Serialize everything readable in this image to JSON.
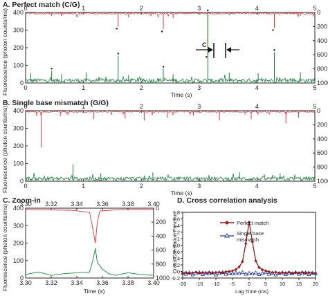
{
  "chart_data": [
    {
      "id": "A",
      "type": "line",
      "title": "A. Perfect match (C/G)",
      "xlabel": "Time (s)",
      "ylabel": "Fluorescence (photon counts/ms)",
      "xlim": [
        0,
        5
      ],
      "ylim": [
        0,
        400
      ],
      "y2lim": [
        1000,
        0
      ],
      "xticks": [
        "0",
        "1",
        "2",
        "3",
        "4",
        "5"
      ],
      "yticks": [
        "0",
        "100",
        "200",
        "300",
        "400"
      ],
      "y2ticks": [
        "0",
        "200",
        "400",
        "600",
        "800",
        "1000"
      ],
      "annotation": "C",
      "series": [
        {
          "color": "#d9333f",
          "axis": "right",
          "points": [
            [
              0.09,
              980
            ],
            [
              0.45,
              950
            ],
            [
              0.62,
              960
            ],
            [
              1.05,
              970
            ],
            [
              1.6,
              800
            ],
            [
              1.78,
              930
            ],
            [
              2.38,
              760
            ],
            [
              2.55,
              920
            ],
            [
              3.15,
              400
            ],
            [
              3.52,
              960
            ],
            [
              4.02,
              970
            ],
            [
              4.3,
              780
            ],
            [
              4.75,
              950
            ]
          ]
        },
        {
          "color": "#1a7d3b",
          "axis": "left",
          "points": [
            [
              0.09,
              55
            ],
            [
              0.45,
              70
            ],
            [
              0.62,
              50
            ],
            [
              1.05,
              60
            ],
            [
              1.6,
              155
            ],
            [
              1.78,
              45
            ],
            [
              2.38,
              80
            ],
            [
              2.55,
              50
            ],
            [
              3.15,
              400
            ],
            [
              3.52,
              60
            ],
            [
              4.02,
              55
            ],
            [
              4.3,
              175
            ],
            [
              4.75,
              60
            ]
          ]
        }
      ]
    },
    {
      "id": "B",
      "type": "line",
      "title": "B. Single base mismatch (G/G)",
      "xlabel": "Time (s)",
      "ylabel": "Fluorescence (photon counts/ms)",
      "xlim": [
        0,
        5
      ],
      "ylim": [
        0,
        400
      ],
      "y2lim": [
        1000,
        0
      ],
      "xticks": [
        "0",
        "1",
        "2",
        "3",
        "4",
        "5"
      ],
      "yticks": [
        "0",
        "100",
        "200",
        "300",
        "400"
      ],
      "y2ticks": [
        "0",
        "200",
        "400",
        "600",
        "800",
        "1000"
      ],
      "series": [
        {
          "color": "#d9333f",
          "axis": "right",
          "points": [
            [
              0.27,
              480
            ],
            [
              0.6,
              920
            ],
            [
              1.18,
              880
            ],
            [
              1.72,
              890
            ],
            [
              2.05,
              860
            ],
            [
              2.45,
              900
            ],
            [
              2.9,
              930
            ],
            [
              3.35,
              860
            ],
            [
              3.9,
              880
            ],
            [
              4.5,
              820
            ],
            [
              4.72,
              900
            ]
          ]
        },
        {
          "color": "#1a7d3b",
          "axis": "left",
          "points": [
            [
              0.82,
              95
            ],
            [
              1.3,
              45
            ],
            [
              2.2,
              50
            ],
            [
              3.7,
              50
            ],
            [
              4.4,
              45
            ]
          ]
        }
      ]
    },
    {
      "id": "C",
      "type": "line",
      "title": "C. Zoom-in",
      "xlabel": "Time (s)",
      "ylabel": "Fluorescence (photon counts/ms)",
      "xlim": [
        3.3,
        3.4
      ],
      "ylim": [
        0,
        400
      ],
      "y2lim": [
        1000,
        0
      ],
      "xticks": [
        "3.30",
        "3.32",
        "3.34",
        "3.36",
        "3.38",
        "3.40"
      ],
      "yticks": [
        "0",
        "100",
        "200",
        "300",
        "400"
      ],
      "y2ticks": [
        "0",
        "200",
        "400",
        "600",
        "800",
        "1000"
      ],
      "series": [
        {
          "color": "#d9333f",
          "axis": "right",
          "points": [
            [
              3.3,
              20
            ],
            [
              3.318,
              25
            ],
            [
              3.336,
              30
            ],
            [
              3.35,
              60
            ],
            [
              3.352,
              250
            ],
            [
              3.3545,
              500
            ],
            [
              3.356,
              200
            ],
            [
              3.358,
              40
            ],
            [
              3.37,
              25
            ],
            [
              3.39,
              20
            ],
            [
              3.4,
              20
            ]
          ]
        },
        {
          "color": "#1a7d3b",
          "axis": "left",
          "points": [
            [
              3.3,
              20
            ],
            [
              3.31,
              35
            ],
            [
              3.32,
              15
            ],
            [
              3.33,
              25
            ],
            [
              3.34,
              30
            ],
            [
              3.35,
              35
            ],
            [
              3.3525,
              100
            ],
            [
              3.3545,
              170
            ],
            [
              3.356,
              90
            ],
            [
              3.36,
              50
            ],
            [
              3.365,
              25
            ],
            [
              3.37,
              15
            ],
            [
              3.38,
              30
            ],
            [
              3.39,
              20
            ],
            [
              3.4,
              15
            ]
          ]
        }
      ]
    },
    {
      "id": "D",
      "type": "line",
      "title": "D. Cross correlation analysis",
      "xlabel": "Lag Time (ms)",
      "ylabel": "Cross Correlation Function",
      "xlim": [
        -20,
        20
      ],
      "ylim": [
        -0.2,
        1.8
      ],
      "xticks": [
        "-20",
        "-15",
        "-10",
        "-5",
        "0",
        "5",
        "10",
        "15",
        "20"
      ],
      "yticks": [
        "-0.2",
        "0",
        "0.2",
        "0.4",
        "0.6",
        "0.8",
        "1",
        "1.2",
        "1.4",
        "1.6",
        "1.8"
      ],
      "legend_position": "top-right",
      "series": [
        {
          "name": "Perfect match",
          "color": "#8b1a1a",
          "marker": "filled-diamond",
          "x": [
            -20,
            -19,
            -18,
            -17,
            -16,
            -15,
            -14,
            -13,
            -12,
            -11,
            -10,
            -9,
            -8,
            -7,
            -6,
            -5,
            -4,
            -3,
            -2,
            -1,
            0,
            1,
            2,
            3,
            4,
            5,
            6,
            7,
            8,
            9,
            10,
            11,
            12,
            13,
            14,
            15,
            16,
            17,
            18,
            19,
            20
          ],
          "y": [
            -0.05,
            -0.03,
            -0.06,
            -0.04,
            -0.02,
            -0.05,
            -0.03,
            -0.04,
            -0.02,
            -0.05,
            -0.03,
            -0.02,
            -0.04,
            -0.01,
            0.0,
            0.02,
            0.06,
            0.14,
            0.3,
            0.85,
            1.5,
            0.9,
            0.32,
            0.12,
            0.05,
            0.02,
            -0.01,
            -0.03,
            -0.02,
            -0.05,
            -0.03,
            -0.04,
            -0.02,
            -0.05,
            -0.03,
            -0.04,
            -0.02,
            -0.05,
            -0.03,
            -0.04,
            -0.05
          ]
        },
        {
          "name": "Single base mismatch",
          "color": "#2b3a9e",
          "marker": "open-triangle",
          "x": [
            -20,
            -19,
            -18,
            -17,
            -16,
            -15,
            -14,
            -13,
            -12,
            -11,
            -10,
            -9,
            -8,
            -7,
            -6,
            -5,
            -4,
            -3,
            -2,
            -1,
            0,
            1,
            2,
            3,
            4,
            5,
            6,
            7,
            8,
            9,
            10,
            11,
            12,
            13,
            14,
            15,
            16,
            17,
            18,
            19,
            20
          ],
          "y": [
            -0.05,
            -0.08,
            -0.04,
            -0.1,
            -0.06,
            -0.03,
            -0.09,
            -0.05,
            -0.07,
            -0.04,
            -0.1,
            -0.06,
            -0.03,
            -0.08,
            -0.05,
            -0.07,
            -0.04,
            -0.06,
            -0.03,
            -0.08,
            -0.05,
            -0.07,
            -0.04,
            -0.09,
            -0.06,
            -0.03,
            -0.08,
            -0.05,
            -0.1,
            -0.06,
            -0.04,
            -0.09,
            -0.05,
            -0.07,
            -0.03,
            -0.08,
            -0.06,
            -0.04,
            -0.09,
            -0.05,
            -0.07
          ]
        }
      ]
    }
  ]
}
